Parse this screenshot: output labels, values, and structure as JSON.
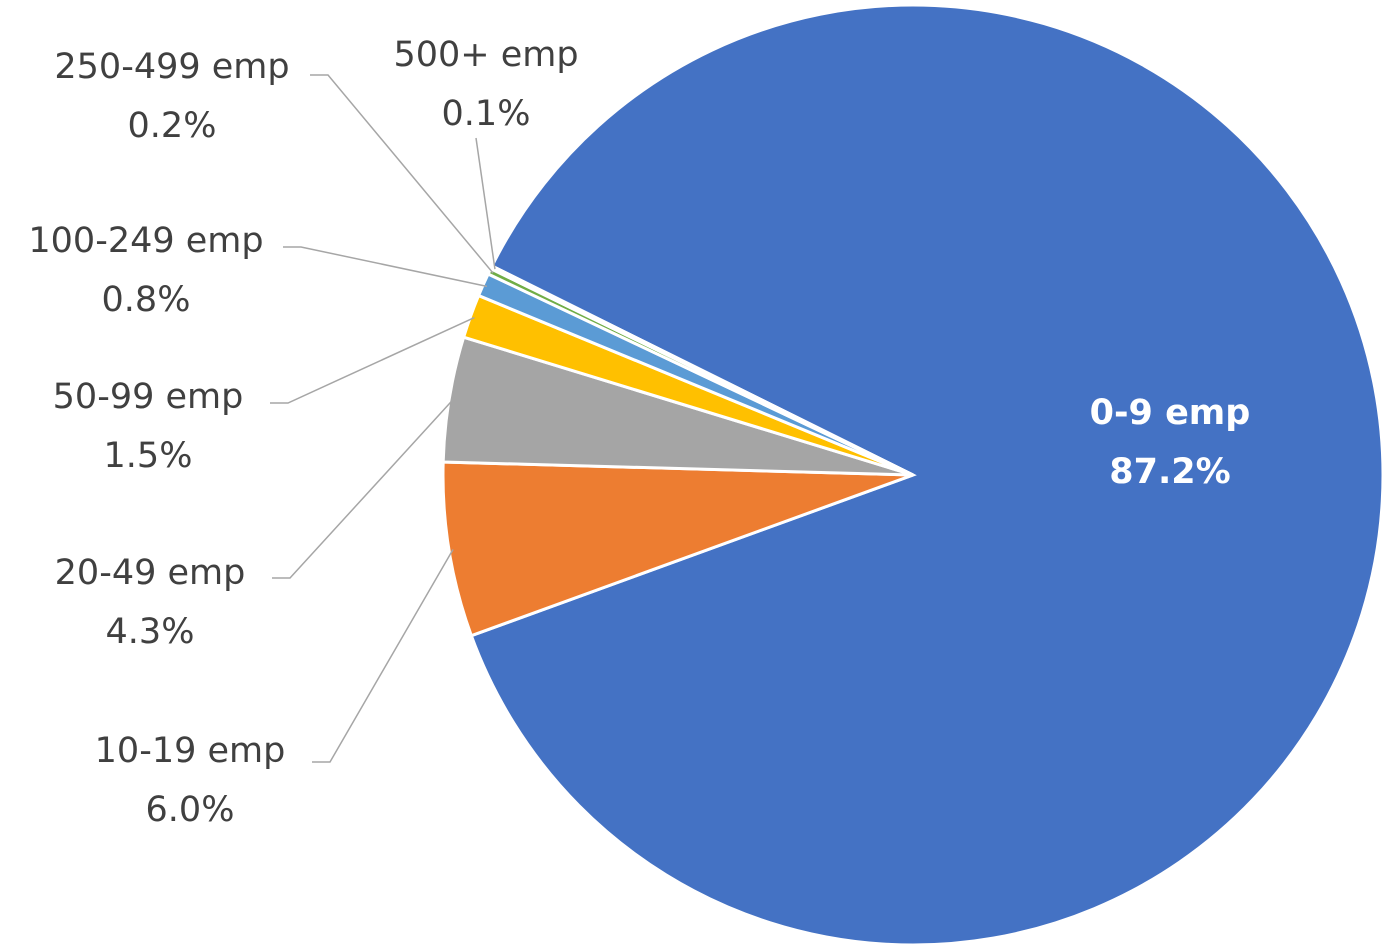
{
  "chart_data": {
    "type": "pie",
    "title": "",
    "start_angle_note": "first slice starts near the upper-left and proceeds clockwise",
    "slices": [
      {
        "label": "0-9 emp",
        "pct_label": "87.2%",
        "value": 87.2,
        "color": "#4472C4",
        "label_position": "inside"
      },
      {
        "label": "10-19 emp",
        "pct_label": "6.0%",
        "value": 6.0,
        "color": "#ED7D31",
        "label_position": "outside-left"
      },
      {
        "label": "20-49 emp",
        "pct_label": "4.3%",
        "value": 4.3,
        "color": "#A5A5A5",
        "label_position": "outside-left"
      },
      {
        "label": "50-99 emp",
        "pct_label": "1.5%",
        "value": 1.5,
        "color": "#FFC000",
        "label_position": "outside-left"
      },
      {
        "label": "100-249 emp",
        "pct_label": "0.8%",
        "value": 0.8,
        "color": "#5B9BD5",
        "label_position": "outside-left"
      },
      {
        "label": "250-499 emp",
        "pct_label": "0.2%",
        "value": 0.2,
        "color": "#70AD47",
        "label_position": "outside-top"
      },
      {
        "label": "500+ emp",
        "pct_label": "0.1%",
        "value": 0.1,
        "color": "#264478",
        "label_position": "outside-top"
      }
    ]
  }
}
